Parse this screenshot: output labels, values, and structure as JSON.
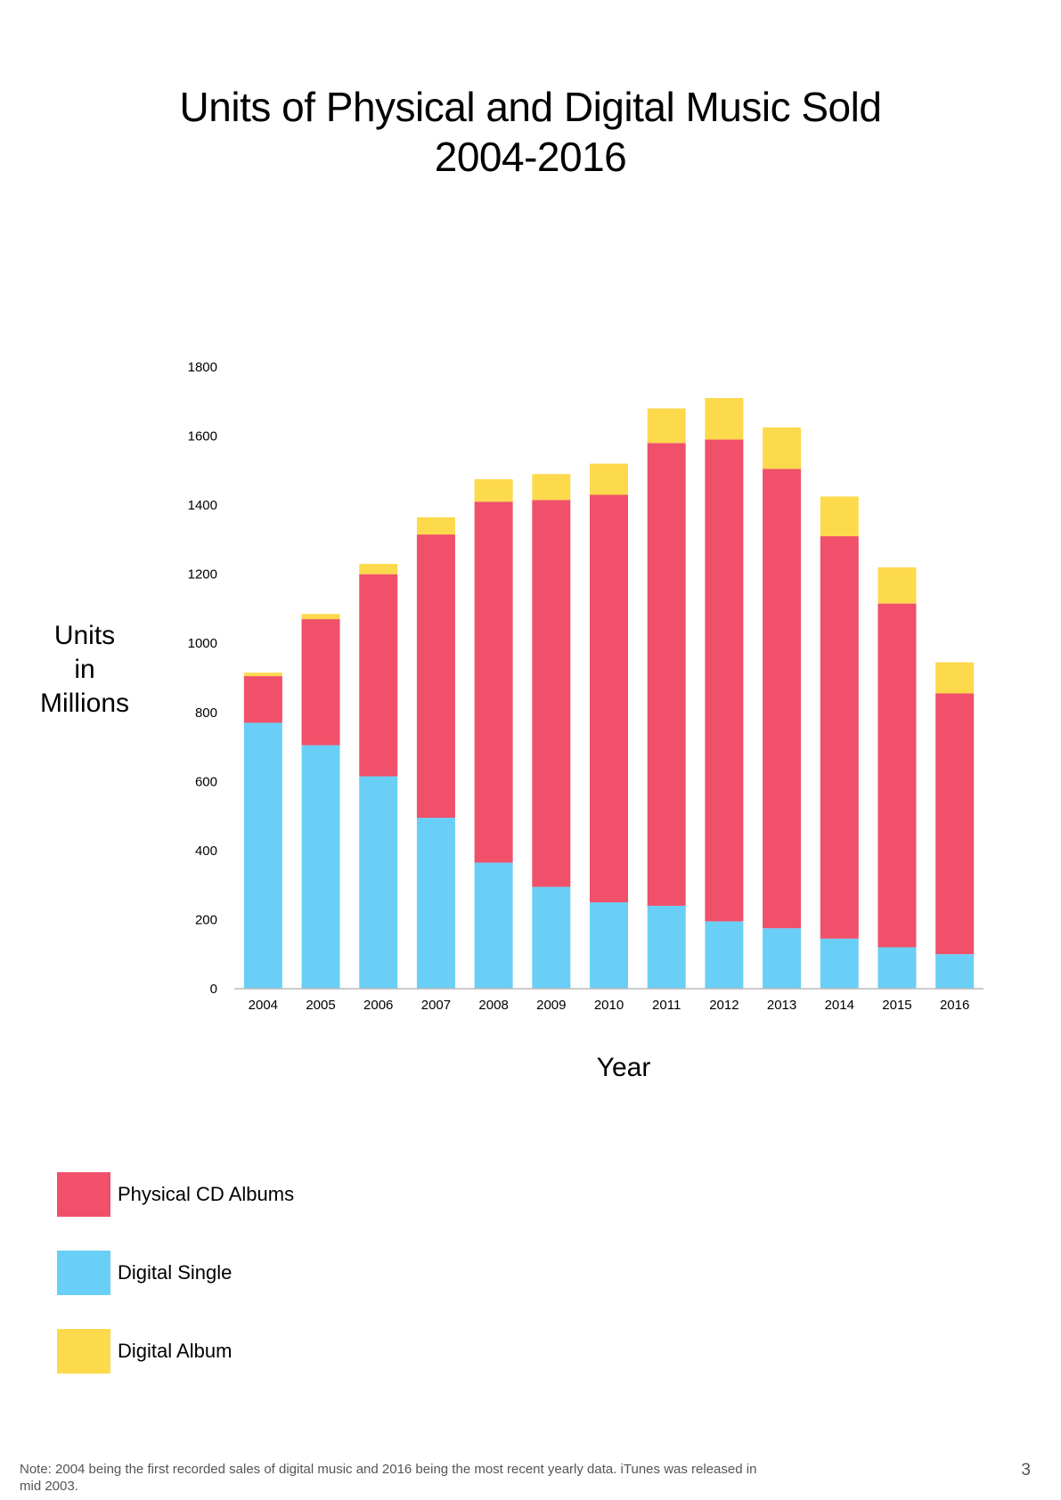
{
  "page": {
    "note": "Note: 2004 being the first recorded sales of digital music and 2016 being the most recent yearly data. iTunes was released in mid 2003.",
    "page_number": "3"
  },
  "chart_data": {
    "type": "bar",
    "stacked": true,
    "title": "Units of Physical and Digital Music Sold\n2004-2016",
    "xlabel": "Year",
    "ylabel": "Units\nin\nMillions",
    "ylim": [
      0,
      1800
    ],
    "yticks": [
      0,
      200,
      400,
      600,
      800,
      1000,
      1200,
      1400,
      1600,
      1800
    ],
    "grid": false,
    "legend_position": "bottom-left",
    "categories": [
      "2004",
      "2005",
      "2006",
      "2007",
      "2008",
      "2009",
      "2010",
      "2011",
      "2012",
      "2013",
      "2014",
      "2015",
      "2016"
    ],
    "series": [
      {
        "name": "Digital Single",
        "color": "#6acff6",
        "values": [
          770,
          705,
          615,
          495,
          365,
          295,
          250,
          240,
          195,
          175,
          145,
          120,
          100
        ]
      },
      {
        "name": "Physical CD Albums",
        "color": "#f0506a",
        "values": [
          135,
          365,
          585,
          820,
          1045,
          1120,
          1180,
          1340,
          1395,
          1330,
          1165,
          995,
          755
        ]
      },
      {
        "name": "Digital Album",
        "color": "#fdd94c",
        "values": [
          10,
          15,
          30,
          50,
          65,
          75,
          90,
          100,
          120,
          120,
          115,
          105,
          90
        ]
      }
    ]
  },
  "legend": {
    "items": [
      {
        "label": "Physical CD Albums",
        "color": "#f0506a"
      },
      {
        "label": "Digital Single",
        "color": "#6acff6"
      },
      {
        "label": "Digital Album",
        "color": "#fdd94c"
      }
    ]
  }
}
